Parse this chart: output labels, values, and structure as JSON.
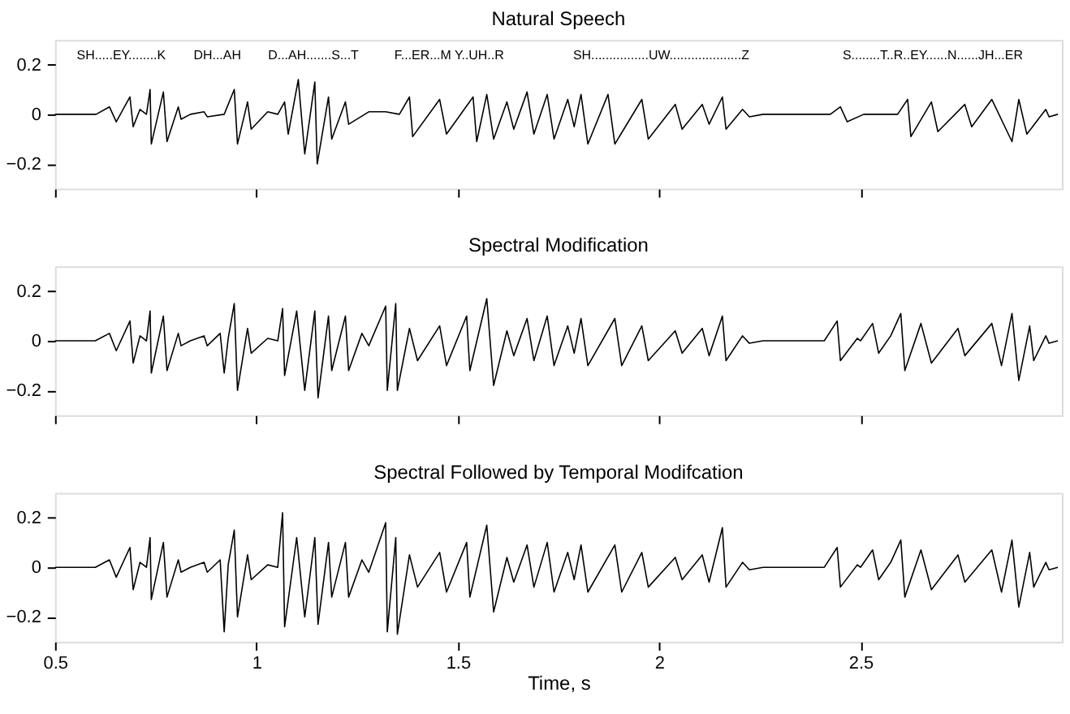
{
  "chart_data": [
    {
      "type": "line",
      "title": "Natural Speech",
      "xlim": [
        0.5,
        3.0
      ],
      "xticks": [
        0.5,
        1,
        1.5,
        2,
        2.5
      ],
      "ylim": [
        -0.3,
        0.3
      ],
      "yticks": [
        -0.2,
        0,
        0.2
      ],
      "tick_labels": "y",
      "grid": false,
      "marker": "none",
      "line_style": "solid",
      "x": [
        0.5,
        0.602,
        0.635,
        0.652,
        0.686,
        0.694,
        0.711,
        0.727,
        0.736,
        0.739,
        0.769,
        0.778,
        0.806,
        0.813,
        0.836,
        0.87,
        0.878,
        0.92,
        0.945,
        0.953,
        0.978,
        0.987,
        1.028,
        1.053,
        1.07,
        1.079,
        1.104,
        1.12,
        1.145,
        1.151,
        1.179,
        1.187,
        1.221,
        1.229,
        1.279,
        1.321,
        1.355,
        1.38,
        1.388,
        1.455,
        1.472,
        1.538,
        1.547,
        1.572,
        1.589,
        1.622,
        1.639,
        1.672,
        1.689,
        1.722,
        1.739,
        1.773,
        1.789,
        1.806,
        1.823,
        1.873,
        1.89,
        1.957,
        1.973,
        2.04,
        2.057,
        2.107,
        2.124,
        2.157,
        2.166,
        2.207,
        2.224,
        2.258,
        2.425,
        2.45,
        2.467,
        2.508,
        2.592,
        2.617,
        2.625,
        2.676,
        2.692,
        2.759,
        2.776,
        2.826,
        2.876,
        2.893,
        2.913,
        2.96,
        2.968,
        2.99
      ],
      "series": [
        {
          "color": "#000000",
          "values": [
            0,
            0,
            0.03,
            -0.03,
            0.07,
            -0.05,
            0.02,
            0,
            0.1,
            -0.12,
            0.09,
            -0.11,
            0.03,
            -0.02,
            0,
            0.01,
            -0.01,
            0,
            0.1,
            -0.12,
            0.05,
            -0.06,
            0.01,
            0,
            0.05,
            -0.08,
            0.14,
            -0.16,
            0.13,
            -0.2,
            0.07,
            -0.1,
            0.05,
            -0.04,
            0.01,
            0.01,
            0,
            0.07,
            -0.09,
            0.06,
            -0.08,
            0.07,
            -0.11,
            0.08,
            -0.1,
            0.05,
            -0.06,
            0.09,
            -0.08,
            0.08,
            -0.1,
            0.06,
            -0.05,
            0.08,
            -0.12,
            0.08,
            -0.12,
            0.06,
            -0.1,
            0.04,
            -0.06,
            0.04,
            -0.04,
            0.07,
            -0.06,
            0.02,
            -0.01,
            0,
            0,
            0.03,
            -0.03,
            0,
            0,
            0.06,
            -0.09,
            0.05,
            -0.07,
            0.04,
            -0.05,
            0.06,
            -0.11,
            0.06,
            -0.08,
            0.02,
            -0.01,
            0
          ]
        }
      ],
      "annotations": [
        "SH.....EY........K",
        "DH...AH",
        "D...AH.......S...T",
        "F...ER...M Y..UH..R",
        "SH................UW....................Z",
        "S........T..R..EY......N......JH...ER"
      ]
    },
    {
      "type": "line",
      "title": "Spectral Modification",
      "xlim": [
        0.5,
        3.0
      ],
      "xticks": [
        0.5,
        1,
        1.5,
        2,
        2.5
      ],
      "ylim": [
        -0.3,
        0.3
      ],
      "yticks": [
        -0.2,
        0,
        0.2
      ],
      "tick_labels": "y",
      "grid": false,
      "marker": "none",
      "line_style": "solid",
      "x": [
        0.5,
        0.6,
        0.635,
        0.652,
        0.686,
        0.694,
        0.711,
        0.727,
        0.736,
        0.739,
        0.769,
        0.778,
        0.806,
        0.813,
        0.836,
        0.87,
        0.878,
        0.91,
        0.92,
        0.93,
        0.945,
        0.953,
        0.978,
        0.987,
        1.028,
        1.053,
        1.065,
        1.07,
        1.1,
        1.12,
        1.145,
        1.153,
        1.179,
        1.187,
        1.221,
        1.229,
        1.262,
        1.279,
        1.321,
        1.325,
        1.346,
        1.35,
        1.38,
        1.4,
        1.455,
        1.472,
        1.522,
        1.53,
        1.572,
        1.589,
        1.622,
        1.639,
        1.672,
        1.689,
        1.722,
        1.739,
        1.773,
        1.789,
        1.806,
        1.823,
        1.89,
        1.907,
        1.957,
        1.973,
        2.04,
        2.057,
        2.107,
        2.124,
        2.157,
        2.166,
        2.207,
        2.224,
        2.258,
        2.41,
        2.442,
        2.45,
        2.492,
        2.5,
        2.53,
        2.545,
        2.575,
        2.6,
        2.61,
        2.65,
        2.676,
        2.742,
        2.759,
        2.826,
        2.85,
        2.876,
        2.893,
        2.92,
        2.93,
        2.96,
        2.968,
        2.99
      ],
      "series": [
        {
          "color": "#000000",
          "values": [
            0,
            0,
            0.03,
            -0.04,
            0.08,
            -0.09,
            0.02,
            0,
            0.12,
            -0.13,
            0.1,
            -0.12,
            0.03,
            -0.02,
            0,
            0.02,
            -0.02,
            0.03,
            -0.13,
            0.01,
            0.15,
            -0.2,
            0.05,
            -0.05,
            0.01,
            0,
            0.13,
            -0.14,
            0.12,
            -0.2,
            0.12,
            -0.23,
            0.1,
            -0.12,
            0.1,
            -0.12,
            0.03,
            -0.02,
            0.14,
            -0.2,
            0.15,
            -0.2,
            0.05,
            -0.08,
            0.06,
            -0.1,
            0.1,
            -0.12,
            0.17,
            -0.18,
            0.04,
            -0.06,
            0.09,
            -0.08,
            0.1,
            -0.1,
            0.06,
            -0.05,
            0.09,
            -0.1,
            0.09,
            -0.1,
            0.06,
            -0.08,
            0.04,
            -0.05,
            0.05,
            -0.06,
            0.1,
            -0.08,
            0.02,
            -0.01,
            0,
            0,
            0.08,
            -0.08,
            0.01,
            0,
            0.07,
            -0.05,
            0.02,
            0.11,
            -0.12,
            0.07,
            -0.09,
            0.05,
            -0.06,
            0.07,
            -0.1,
            0.11,
            -0.16,
            0.06,
            -0.08,
            0.02,
            -0.01,
            0
          ]
        }
      ]
    },
    {
      "type": "line",
      "title": "Spectral Followed by Temporal Modifcation",
      "xlabel": "Time, s",
      "xlim": [
        0.5,
        3.0
      ],
      "xticks": [
        0.5,
        1,
        1.5,
        2,
        2.5
      ],
      "ylim": [
        -0.3,
        0.3
      ],
      "yticks": [
        -0.2,
        0,
        0.2
      ],
      "grid": false,
      "marker": "none",
      "line_style": "solid",
      "x": [
        0.5,
        0.6,
        0.635,
        0.652,
        0.686,
        0.694,
        0.711,
        0.727,
        0.736,
        0.739,
        0.769,
        0.778,
        0.806,
        0.813,
        0.836,
        0.87,
        0.878,
        0.91,
        0.92,
        0.93,
        0.945,
        0.953,
        0.978,
        0.987,
        1.028,
        1.053,
        1.065,
        1.07,
        1.1,
        1.12,
        1.145,
        1.153,
        1.179,
        1.187,
        1.221,
        1.229,
        1.262,
        1.279,
        1.321,
        1.325,
        1.346,
        1.35,
        1.38,
        1.4,
        1.455,
        1.472,
        1.522,
        1.53,
        1.572,
        1.589,
        1.622,
        1.639,
        1.672,
        1.689,
        1.722,
        1.739,
        1.773,
        1.789,
        1.806,
        1.823,
        1.89,
        1.907,
        1.957,
        1.973,
        2.04,
        2.057,
        2.107,
        2.124,
        2.157,
        2.166,
        2.207,
        2.224,
        2.258,
        2.41,
        2.442,
        2.45,
        2.492,
        2.5,
        2.53,
        2.545,
        2.575,
        2.6,
        2.61,
        2.65,
        2.676,
        2.742,
        2.759,
        2.826,
        2.85,
        2.876,
        2.893,
        2.92,
        2.93,
        2.96,
        2.968,
        2.99
      ],
      "series": [
        {
          "color": "#000000",
          "values": [
            0,
            0,
            0.03,
            -0.04,
            0.08,
            -0.09,
            0.02,
            0,
            0.12,
            -0.13,
            0.1,
            -0.12,
            0.03,
            -0.02,
            0,
            0.02,
            -0.02,
            0.03,
            -0.26,
            0.01,
            0.15,
            -0.2,
            0.05,
            -0.05,
            0.01,
            0,
            0.22,
            -0.24,
            0.12,
            -0.2,
            0.12,
            -0.23,
            0.1,
            -0.12,
            0.1,
            -0.12,
            0.03,
            -0.02,
            0.18,
            -0.26,
            0.12,
            -0.27,
            0.05,
            -0.08,
            0.06,
            -0.1,
            0.1,
            -0.12,
            0.17,
            -0.18,
            0.04,
            -0.06,
            0.09,
            -0.08,
            0.1,
            -0.1,
            0.06,
            -0.05,
            0.09,
            -0.1,
            0.09,
            -0.1,
            0.06,
            -0.08,
            0.04,
            -0.05,
            0.05,
            -0.06,
            0.16,
            -0.08,
            0.02,
            -0.01,
            0,
            0,
            0.08,
            -0.08,
            0.01,
            0,
            0.07,
            -0.05,
            0.02,
            0.11,
            -0.12,
            0.07,
            -0.09,
            0.05,
            -0.06,
            0.07,
            -0.1,
            0.11,
            -0.16,
            0.06,
            -0.08,
            0.02,
            -0.01,
            0
          ]
        }
      ]
    }
  ]
}
